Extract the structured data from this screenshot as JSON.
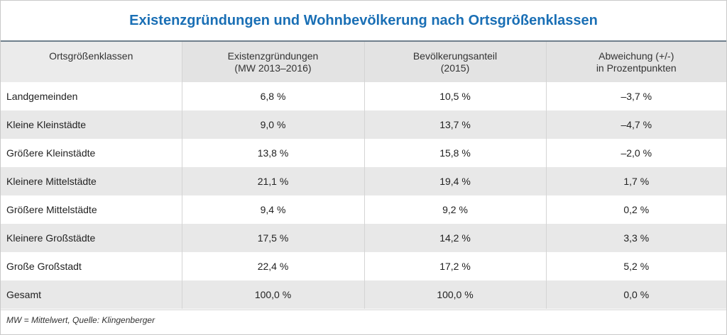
{
  "title": "Existenzgründungen und Wohnbevölkerung nach Ortsgrößenklassen",
  "table": {
    "headers": [
      {
        "line1": "Ortsgrößenklassen",
        "line2": ""
      },
      {
        "line1": "Existenzgründungen",
        "line2": "(MW 2013–2016)"
      },
      {
        "line1": "Bevölkerungsanteil",
        "line2": "(2015)"
      },
      {
        "line1": "Abweichung (+/-)",
        "line2": "in Prozentpunkten"
      }
    ],
    "rows": [
      [
        "Landgemeinden",
        "6,8 %",
        "10,5 %",
        "–3,7 %"
      ],
      [
        "Kleine Kleinstädte",
        "9,0 %",
        "13,7 %",
        "–4,7 %"
      ],
      [
        "Größere Kleinstädte",
        "13,8 %",
        "15,8 %",
        "–2,0 %"
      ],
      [
        "Kleinere Mittelstädte",
        "21,1 %",
        "19,4 %",
        "1,7 %"
      ],
      [
        "Größere Mittelstädte",
        "9,4 %",
        "9,2 %",
        "0,2 %"
      ],
      [
        "Kleinere Großstädte",
        "17,5 %",
        "14,2 %",
        "3,3 %"
      ],
      [
        "Große Großstadt",
        "22,4 %",
        "17,2 %",
        "5,2 %"
      ],
      [
        "Gesamt",
        "100,0 %",
        "100,0 %",
        "0,0 %"
      ]
    ]
  },
  "footnote": "MW = Mittelwert, Quelle: Klingenberger",
  "colors": {
    "title": "#1a6fb5",
    "header_bg": "#e3e3e3",
    "stripe_bg": "#e8e8e8"
  }
}
